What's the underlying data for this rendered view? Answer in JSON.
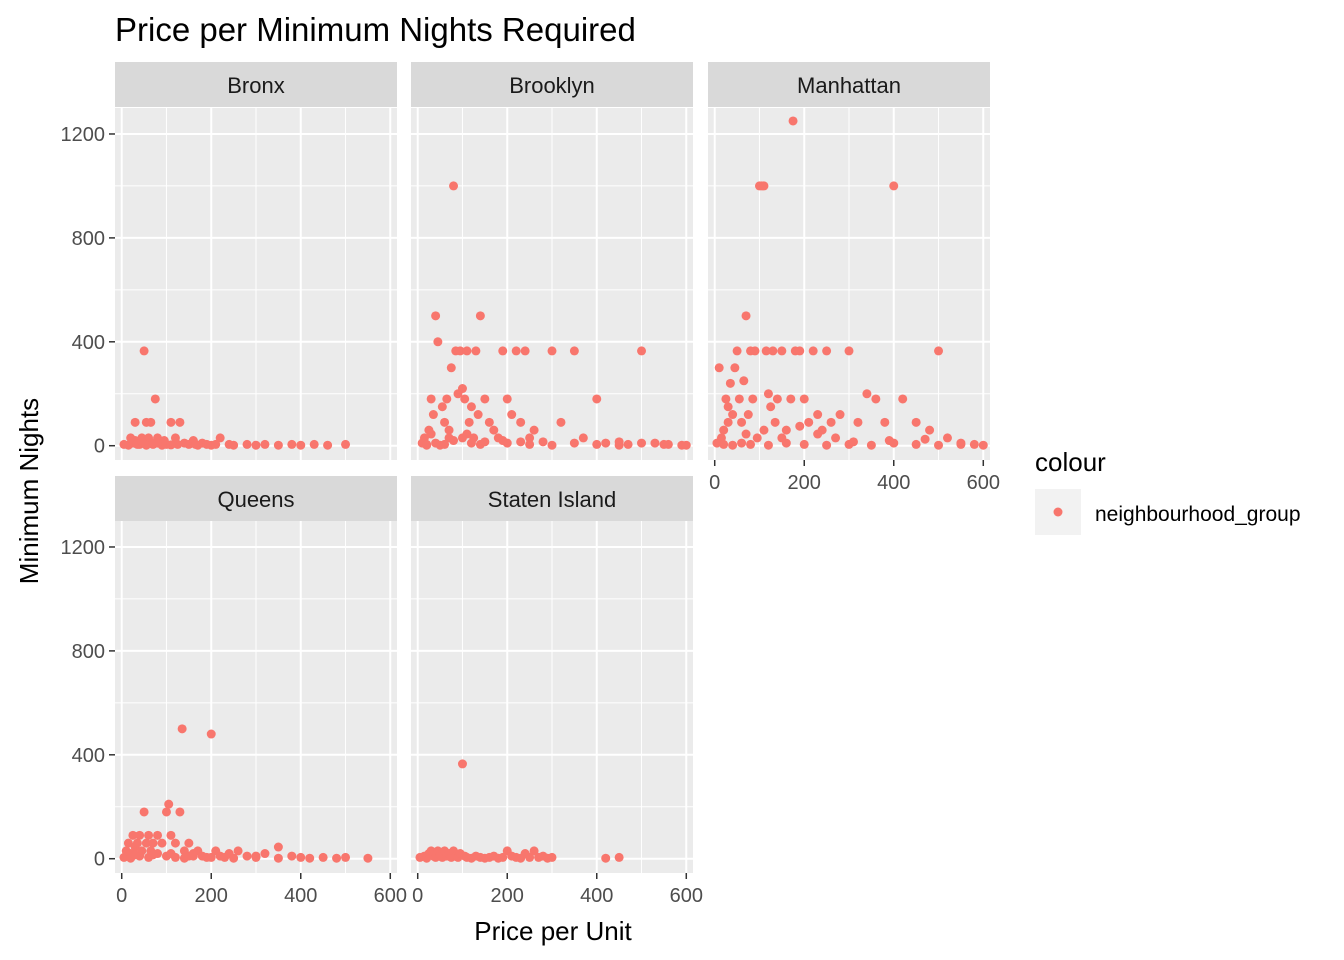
{
  "chart_data": {
    "type": "scatter",
    "title": "Price per Minimum Nights Required",
    "xlabel": "Price per Unit",
    "ylabel": "Minimum Nights",
    "xlim": [
      -15,
      615
    ],
    "ylim": [
      -55,
      1300
    ],
    "x_ticks": [
      0,
      200,
      400,
      600
    ],
    "y_ticks": [
      0,
      400,
      800,
      1200
    ],
    "grid": true,
    "legend": {
      "title": "colour",
      "placement": "right",
      "entries": [
        {
          "label": "neighbourhood_group",
          "color": "#F8766D"
        }
      ]
    },
    "point_color": "#F8766D",
    "panels": [
      {
        "name": "Bronx",
        "points": [
          [
            5,
            5
          ],
          [
            15,
            2
          ],
          [
            25,
            10
          ],
          [
            30,
            20
          ],
          [
            40,
            5
          ],
          [
            45,
            30
          ],
          [
            50,
            365
          ],
          [
            55,
            90
          ],
          [
            60,
            30
          ],
          [
            65,
            90
          ],
          [
            70,
            5
          ],
          [
            75,
            180
          ],
          [
            80,
            30
          ],
          [
            85,
            15
          ],
          [
            90,
            2
          ],
          [
            100,
            5
          ],
          [
            110,
            90
          ],
          [
            120,
            30
          ],
          [
            130,
            90
          ],
          [
            140,
            10
          ],
          [
            150,
            5
          ],
          [
            160,
            20
          ],
          [
            170,
            2
          ],
          [
            180,
            10
          ],
          [
            190,
            5
          ],
          [
            200,
            2
          ],
          [
            210,
            5
          ],
          [
            220,
            30
          ],
          [
            240,
            5
          ],
          [
            250,
            2
          ],
          [
            280,
            5
          ],
          [
            300,
            2
          ],
          [
            320,
            5
          ],
          [
            350,
            2
          ],
          [
            380,
            5
          ],
          [
            400,
            2
          ],
          [
            430,
            5
          ],
          [
            460,
            2
          ],
          [
            500,
            5
          ],
          [
            30,
            90
          ],
          [
            35,
            5
          ],
          [
            45,
            15
          ],
          [
            55,
            2
          ],
          [
            70,
            10
          ],
          [
            95,
            20
          ],
          [
            125,
            5
          ],
          [
            165,
            5
          ],
          [
            20,
            30
          ],
          [
            80,
            10
          ],
          [
            110,
            3
          ]
        ]
      },
      {
        "name": "Brooklyn",
        "points": [
          [
            10,
            10
          ],
          [
            15,
            30
          ],
          [
            20,
            5
          ],
          [
            25,
            60
          ],
          [
            30,
            180
          ],
          [
            35,
            120
          ],
          [
            40,
            500
          ],
          [
            45,
            400
          ],
          [
            50,
            2
          ],
          [
            55,
            150
          ],
          [
            60,
            90
          ],
          [
            65,
            180
          ],
          [
            70,
            30
          ],
          [
            75,
            300
          ],
          [
            80,
            1000
          ],
          [
            85,
            365
          ],
          [
            90,
            200
          ],
          [
            95,
            365
          ],
          [
            100,
            220
          ],
          [
            105,
            180
          ],
          [
            110,
            365
          ],
          [
            115,
            90
          ],
          [
            120,
            150
          ],
          [
            125,
            30
          ],
          [
            130,
            365
          ],
          [
            135,
            120
          ],
          [
            140,
            500
          ],
          [
            150,
            180
          ],
          [
            160,
            90
          ],
          [
            170,
            60
          ],
          [
            180,
            30
          ],
          [
            190,
            365
          ],
          [
            200,
            180
          ],
          [
            210,
            120
          ],
          [
            220,
            365
          ],
          [
            230,
            90
          ],
          [
            240,
            365
          ],
          [
            250,
            30
          ],
          [
            260,
            60
          ],
          [
            280,
            15
          ],
          [
            300,
            365
          ],
          [
            320,
            90
          ],
          [
            350,
            365
          ],
          [
            370,
            30
          ],
          [
            400,
            180
          ],
          [
            420,
            10
          ],
          [
            450,
            15
          ],
          [
            470,
            5
          ],
          [
            500,
            365
          ],
          [
            530,
            10
          ],
          [
            560,
            5
          ],
          [
            590,
            2
          ],
          [
            20,
            2
          ],
          [
            40,
            10
          ],
          [
            60,
            5
          ],
          [
            80,
            20
          ],
          [
            100,
            30
          ],
          [
            120,
            10
          ],
          [
            140,
            5
          ],
          [
            200,
            10
          ],
          [
            250,
            5
          ],
          [
            300,
            2
          ],
          [
            350,
            10
          ],
          [
            400,
            5
          ],
          [
            450,
            2
          ],
          [
            500,
            10
          ],
          [
            550,
            5
          ],
          [
            600,
            2
          ],
          [
            30,
            45
          ],
          [
            70,
            60
          ],
          [
            110,
            45
          ],
          [
            150,
            15
          ],
          [
            190,
            20
          ],
          [
            230,
            15
          ]
        ]
      },
      {
        "name": "Manhattan",
        "points": [
          [
            5,
            10
          ],
          [
            10,
            300
          ],
          [
            15,
            30
          ],
          [
            20,
            60
          ],
          [
            25,
            180
          ],
          [
            30,
            90
          ],
          [
            35,
            240
          ],
          [
            40,
            120
          ],
          [
            45,
            300
          ],
          [
            50,
            365
          ],
          [
            55,
            180
          ],
          [
            60,
            90
          ],
          [
            65,
            250
          ],
          [
            70,
            500
          ],
          [
            75,
            120
          ],
          [
            80,
            365
          ],
          [
            85,
            180
          ],
          [
            90,
            365
          ],
          [
            95,
            30
          ],
          [
            100,
            1000
          ],
          [
            105,
            1000
          ],
          [
            110,
            1000
          ],
          [
            115,
            365
          ],
          [
            120,
            200
          ],
          [
            125,
            150
          ],
          [
            130,
            365
          ],
          [
            135,
            90
          ],
          [
            140,
            180
          ],
          [
            150,
            365
          ],
          [
            160,
            60
          ],
          [
            170,
            180
          ],
          [
            175,
            1250
          ],
          [
            180,
            365
          ],
          [
            190,
            365
          ],
          [
            200,
            180
          ],
          [
            210,
            90
          ],
          [
            220,
            365
          ],
          [
            230,
            120
          ],
          [
            240,
            60
          ],
          [
            250,
            365
          ],
          [
            260,
            90
          ],
          [
            280,
            120
          ],
          [
            300,
            365
          ],
          [
            320,
            90
          ],
          [
            340,
            200
          ],
          [
            360,
            180
          ],
          [
            380,
            90
          ],
          [
            400,
            1000
          ],
          [
            420,
            180
          ],
          [
            450,
            90
          ],
          [
            480,
            60
          ],
          [
            500,
            365
          ],
          [
            520,
            30
          ],
          [
            550,
            10
          ],
          [
            580,
            5
          ],
          [
            600,
            2
          ],
          [
            20,
            5
          ],
          [
            40,
            2
          ],
          [
            60,
            10
          ],
          [
            80,
            5
          ],
          [
            120,
            2
          ],
          [
            160,
            10
          ],
          [
            200,
            5
          ],
          [
            250,
            2
          ],
          [
            300,
            5
          ],
          [
            350,
            2
          ],
          [
            400,
            10
          ],
          [
            450,
            5
          ],
          [
            500,
            2
          ],
          [
            550,
            5
          ],
          [
            30,
            150
          ],
          [
            70,
            45
          ],
          [
            110,
            60
          ],
          [
            150,
            30
          ],
          [
            190,
            75
          ],
          [
            230,
            45
          ],
          [
            270,
            30
          ],
          [
            310,
            15
          ],
          [
            390,
            20
          ],
          [
            470,
            25
          ]
        ]
      },
      {
        "name": "Queens",
        "points": [
          [
            5,
            5
          ],
          [
            10,
            30
          ],
          [
            15,
            60
          ],
          [
            20,
            20
          ],
          [
            25,
            90
          ],
          [
            30,
            45
          ],
          [
            35,
            60
          ],
          [
            40,
            90
          ],
          [
            45,
            30
          ],
          [
            50,
            180
          ],
          [
            55,
            60
          ],
          [
            60,
            90
          ],
          [
            65,
            30
          ],
          [
            70,
            60
          ],
          [
            80,
            90
          ],
          [
            90,
            60
          ],
          [
            100,
            180
          ],
          [
            105,
            210
          ],
          [
            110,
            90
          ],
          [
            120,
            60
          ],
          [
            130,
            180
          ],
          [
            135,
            500
          ],
          [
            140,
            30
          ],
          [
            150,
            60
          ],
          [
            160,
            20
          ],
          [
            170,
            30
          ],
          [
            180,
            10
          ],
          [
            190,
            5
          ],
          [
            200,
            480
          ],
          [
            210,
            30
          ],
          [
            220,
            10
          ],
          [
            230,
            5
          ],
          [
            240,
            20
          ],
          [
            260,
            30
          ],
          [
            280,
            10
          ],
          [
            300,
            5
          ],
          [
            320,
            20
          ],
          [
            350,
            45
          ],
          [
            380,
            10
          ],
          [
            400,
            5
          ],
          [
            420,
            2
          ],
          [
            450,
            5
          ],
          [
            480,
            2
          ],
          [
            500,
            5
          ],
          [
            550,
            2
          ],
          [
            20,
            2
          ],
          [
            40,
            10
          ],
          [
            60,
            5
          ],
          [
            80,
            20
          ],
          [
            100,
            10
          ],
          [
            120,
            5
          ],
          [
            140,
            2
          ],
          [
            160,
            10
          ],
          [
            200,
            5
          ],
          [
            250,
            2
          ],
          [
            300,
            10
          ],
          [
            350,
            2
          ],
          [
            30,
            15
          ],
          [
            70,
            15
          ],
          [
            110,
            20
          ],
          [
            150,
            10
          ]
        ]
      },
      {
        "name": "Staten Island",
        "points": [
          [
            5,
            5
          ],
          [
            15,
            10
          ],
          [
            20,
            2
          ],
          [
            25,
            20
          ],
          [
            30,
            30
          ],
          [
            35,
            10
          ],
          [
            40,
            5
          ],
          [
            45,
            30
          ],
          [
            50,
            15
          ],
          [
            55,
            5
          ],
          [
            60,
            30
          ],
          [
            65,
            10
          ],
          [
            70,
            20
          ],
          [
            75,
            5
          ],
          [
            80,
            30
          ],
          [
            85,
            10
          ],
          [
            90,
            5
          ],
          [
            95,
            20
          ],
          [
            100,
            365
          ],
          [
            105,
            10
          ],
          [
            110,
            5
          ],
          [
            120,
            2
          ],
          [
            130,
            10
          ],
          [
            140,
            5
          ],
          [
            150,
            2
          ],
          [
            160,
            5
          ],
          [
            170,
            10
          ],
          [
            180,
            2
          ],
          [
            190,
            5
          ],
          [
            200,
            30
          ],
          [
            210,
            10
          ],
          [
            220,
            5
          ],
          [
            230,
            2
          ],
          [
            240,
            20
          ],
          [
            250,
            5
          ],
          [
            260,
            30
          ],
          [
            270,
            5
          ],
          [
            280,
            10
          ],
          [
            290,
            2
          ],
          [
            300,
            5
          ],
          [
            420,
            2
          ],
          [
            450,
            5
          ]
        ]
      }
    ]
  }
}
